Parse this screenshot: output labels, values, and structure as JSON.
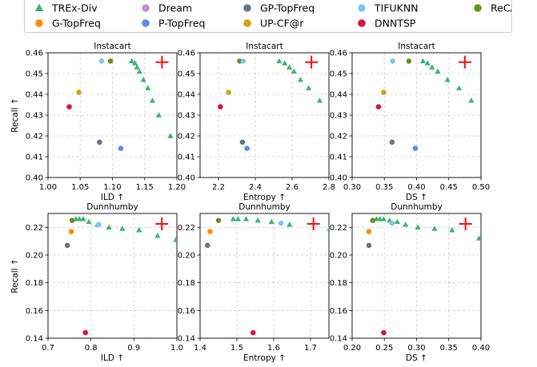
{
  "colors": {
    "TREx-Div": "#3cb371",
    "G-TopFreq": "#ff8c00",
    "Dream": "#c38fd6",
    "P-TopFreq": "#5b8ee6",
    "GP-TopFreq": "#6b7582",
    "UP-CF@r": "#d4a017",
    "TIFUKNN": "#7ec8e8",
    "DNNTSP": "#dc143c",
    "ReCANet": "#6b8e23",
    "ideal": "#ee1111"
  },
  "legend": {
    "placement": "top-center",
    "entries": [
      {
        "label": "TREx-Div",
        "marker": "triangle",
        "key": "TREx-Div"
      },
      {
        "label": "G-TopFreq",
        "marker": "circle",
        "key": "G-TopFreq"
      },
      {
        "label": "Dream",
        "marker": "circle",
        "key": "Dream"
      },
      {
        "label": "P-TopFreq",
        "marker": "circle",
        "key": "P-TopFreq"
      },
      {
        "label": "GP-TopFreq",
        "marker": "circle",
        "key": "GP-TopFreq"
      },
      {
        "label": "UP-CF@r",
        "marker": "circle",
        "key": "UP-CF@r"
      },
      {
        "label": "TIFUKNN",
        "marker": "circle",
        "key": "TIFUKNN"
      },
      {
        "label": "DNNTSP",
        "marker": "circle",
        "key": "DNNTSP"
      },
      {
        "label": "ReCANet",
        "marker": "circle",
        "key": "ReCANet"
      }
    ]
  },
  "chart_data": [
    {
      "type": "scatter",
      "title": "Instacart",
      "xlabel": "ILD ↑",
      "ylabel": "Recall ↑",
      "xlim": [
        1.0,
        1.2
      ],
      "ylim": [
        0.4,
        0.46
      ],
      "grid": true,
      "xticks": [
        "1.00",
        "1.05",
        "1.10",
        "1.15",
        "1.20"
      ],
      "yticks": [
        "0.40",
        "0.41",
        "0.42",
        "0.43",
        "0.44",
        "0.45",
        "0.46"
      ],
      "trex": [
        [
          1.13,
          0.456
        ],
        [
          1.135,
          0.455
        ],
        [
          1.138,
          0.453
        ],
        [
          1.142,
          0.451
        ],
        [
          1.148,
          0.447
        ],
        [
          1.155,
          0.443
        ],
        [
          1.162,
          0.437
        ],
        [
          1.172,
          0.43
        ],
        [
          1.19,
          0.42
        ]
      ],
      "points": [
        {
          "key": "TIFUKNN",
          "x": 1.083,
          "y": 0.456
        },
        {
          "key": "ReCANet",
          "x": 1.097,
          "y": 0.456
        },
        {
          "key": "UP-CF@r",
          "x": 1.048,
          "y": 0.441
        },
        {
          "key": "DNNTSP",
          "x": 1.033,
          "y": 0.434
        },
        {
          "key": "GP-TopFreq",
          "x": 1.08,
          "y": 0.417
        },
        {
          "key": "P-TopFreq",
          "x": 1.113,
          "y": 0.414
        }
      ],
      "ideal": [
        1.177,
        0.4555
      ]
    },
    {
      "type": "scatter",
      "title": "Instacart",
      "xlabel": "Entropy ↑",
      "ylabel": "",
      "xlim": [
        2.1,
        2.8
      ],
      "ylim": [
        0.4,
        0.46
      ],
      "grid": true,
      "xticks": [
        "2.2",
        "2.4",
        "2.6",
        "2.8"
      ],
      "yticks": [
        "0.40",
        "0.41",
        "0.42",
        "0.43",
        "0.44",
        "0.45",
        "0.46"
      ],
      "trex": [
        [
          2.53,
          0.456
        ],
        [
          2.56,
          0.455
        ],
        [
          2.585,
          0.453
        ],
        [
          2.61,
          0.451
        ],
        [
          2.645,
          0.447
        ],
        [
          2.69,
          0.443
        ],
        [
          2.75,
          0.437
        ]
      ],
      "points": [
        {
          "key": "ReCANet",
          "x": 2.315,
          "y": 0.456
        },
        {
          "key": "TIFUKNN",
          "x": 2.335,
          "y": 0.456
        },
        {
          "key": "UP-CF@r",
          "x": 2.255,
          "y": 0.441
        },
        {
          "key": "DNNTSP",
          "x": 2.21,
          "y": 0.434
        },
        {
          "key": "GP-TopFreq",
          "x": 2.33,
          "y": 0.417
        },
        {
          "key": "P-TopFreq",
          "x": 2.355,
          "y": 0.414
        }
      ],
      "ideal": [
        2.705,
        0.4555
      ]
    },
    {
      "type": "scatter",
      "title": "Instacart",
      "xlabel": "DS ↑",
      "ylabel": "",
      "xlim": [
        0.3,
        0.5
      ],
      "ylim": [
        0.4,
        0.46
      ],
      "grid": true,
      "xticks": [
        "0.30",
        "0.35",
        "0.40",
        "0.45",
        "0.50"
      ],
      "yticks": [
        "0.40",
        "0.41",
        "0.42",
        "0.43",
        "0.44",
        "0.45",
        "0.46"
      ],
      "trex": [
        [
          0.41,
          0.456
        ],
        [
          0.417,
          0.455
        ],
        [
          0.424,
          0.453
        ],
        [
          0.433,
          0.451
        ],
        [
          0.448,
          0.447
        ],
        [
          0.466,
          0.443
        ],
        [
          0.485,
          0.437
        ]
      ],
      "points": [
        {
          "key": "TIFUKNN",
          "x": 0.363,
          "y": 0.456
        },
        {
          "key": "ReCANet",
          "x": 0.388,
          "y": 0.456
        },
        {
          "key": "UP-CF@r",
          "x": 0.349,
          "y": 0.441
        },
        {
          "key": "DNNTSP",
          "x": 0.341,
          "y": 0.434
        },
        {
          "key": "GP-TopFreq",
          "x": 0.362,
          "y": 0.417
        },
        {
          "key": "P-TopFreq",
          "x": 0.398,
          "y": 0.414
        }
      ],
      "ideal": [
        0.475,
        0.4555
      ]
    },
    {
      "type": "scatter",
      "title": "Dunnhumby",
      "xlabel": "ILD ↑",
      "ylabel": "Recall ↑",
      "xlim": [
        0.7,
        1.0
      ],
      "ylim": [
        0.14,
        0.23
      ],
      "grid": true,
      "xticks": [
        "0.7",
        "0.8",
        "0.9",
        "1.0"
      ],
      "yticks": [
        "0.14",
        "0.16",
        "0.18",
        "0.20",
        "0.22"
      ],
      "trex": [
        [
          0.765,
          0.226
        ],
        [
          0.773,
          0.226
        ],
        [
          0.782,
          0.226
        ],
        [
          0.795,
          0.224
        ],
        [
          0.815,
          0.222
        ],
        [
          0.842,
          0.22
        ],
        [
          0.873,
          0.219
        ],
        [
          0.912,
          0.218
        ],
        [
          0.955,
          0.214
        ],
        [
          0.998,
          0.211
        ]
      ],
      "points": [
        {
          "key": "ReCANet",
          "x": 0.756,
          "y": 0.225
        },
        {
          "key": "TIFUKNN",
          "x": 0.818,
          "y": 0.222
        },
        {
          "key": "G-TopFreq",
          "x": 0.754,
          "y": 0.217
        },
        {
          "key": "GP-TopFreq",
          "x": 0.745,
          "y": 0.207
        },
        {
          "key": "DNNTSP",
          "x": 0.787,
          "y": 0.144
        }
      ],
      "ideal": [
        0.965,
        0.2225
      ]
    },
    {
      "type": "scatter",
      "title": "Dunnhumby",
      "xlabel": "Entropy ↑",
      "ylabel": "",
      "xlim": [
        1.4,
        1.75
      ],
      "ylim": [
        0.14,
        0.23
      ],
      "grid": true,
      "xticks": [
        "1.4",
        "1.5",
        "1.6",
        "1.7"
      ],
      "yticks": [
        "0.14",
        "0.16",
        "0.18",
        "0.20",
        "0.22"
      ],
      "trex": [
        [
          1.49,
          0.226
        ],
        [
          1.503,
          0.226
        ],
        [
          1.525,
          0.226
        ],
        [
          1.557,
          0.225
        ],
        [
          1.594,
          0.224
        ],
        [
          1.643,
          0.222
        ],
        [
          1.752,
          0.219
        ]
      ],
      "points": [
        {
          "key": "ReCANet",
          "x": 1.45,
          "y": 0.225
        },
        {
          "key": "TIFUKNN",
          "x": 1.62,
          "y": 0.223
        },
        {
          "key": "G-TopFreq",
          "x": 1.427,
          "y": 0.217
        },
        {
          "key": "GP-TopFreq",
          "x": 1.42,
          "y": 0.207
        },
        {
          "key": "DNNTSP",
          "x": 1.544,
          "y": 0.144
        }
      ],
      "ideal": [
        1.708,
        0.2225
      ]
    },
    {
      "type": "scatter",
      "title": "Dunnhumby",
      "xlabel": "DS ↑",
      "ylabel": "",
      "xlim": [
        0.2,
        0.4
      ],
      "ylim": [
        0.14,
        0.23
      ],
      "grid": true,
      "xticks": [
        "0.20",
        "0.25",
        "0.30",
        "0.35",
        "0.40"
      ],
      "yticks": [
        "0.14",
        "0.16",
        "0.18",
        "0.20",
        "0.22"
      ],
      "trex": [
        [
          0.238,
          0.226
        ],
        [
          0.243,
          0.226
        ],
        [
          0.249,
          0.226
        ],
        [
          0.258,
          0.225
        ],
        [
          0.27,
          0.224
        ],
        [
          0.283,
          0.222
        ],
        [
          0.302,
          0.22
        ],
        [
          0.328,
          0.219
        ],
        [
          0.355,
          0.218
        ],
        [
          0.397,
          0.212
        ]
      ],
      "points": [
        {
          "key": "ReCANet",
          "x": 0.232,
          "y": 0.225
        },
        {
          "key": "TIFUKNN",
          "x": 0.262,
          "y": 0.223
        },
        {
          "key": "G-TopFreq",
          "x": 0.226,
          "y": 0.217
        },
        {
          "key": "GP-TopFreq",
          "x": 0.226,
          "y": 0.207
        },
        {
          "key": "DNNTSP",
          "x": 0.249,
          "y": 0.144
        }
      ],
      "ideal": [
        0.376,
        0.2225
      ]
    }
  ]
}
